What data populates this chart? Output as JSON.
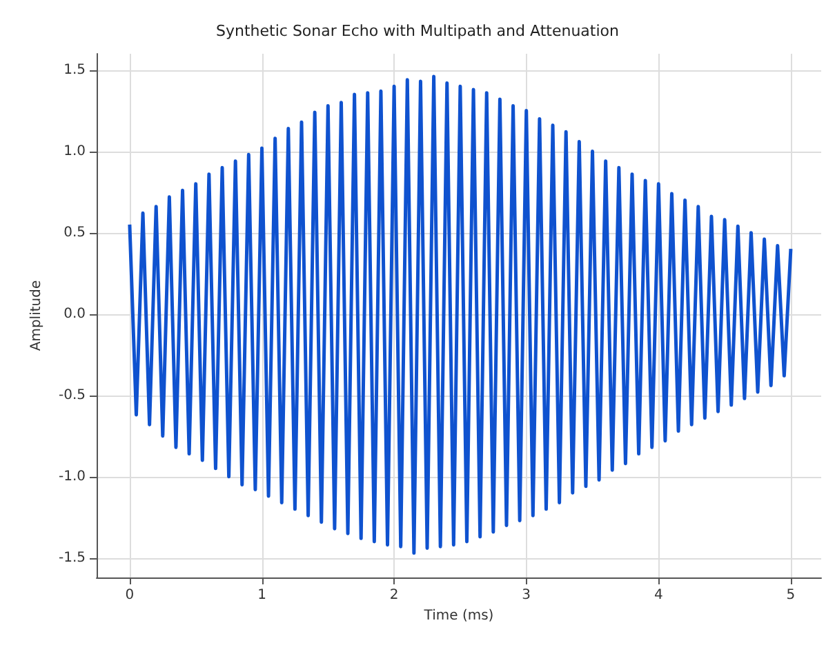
{
  "chart_data": {
    "type": "line",
    "title": "Synthetic Sonar Echo with Multipath and Attenuation",
    "xlabel": "Time (ms)",
    "ylabel": "Amplitude",
    "x": [
      0,
      0.05,
      0.1,
      0.15,
      0.2,
      0.25,
      0.3,
      0.35,
      0.4,
      0.45,
      0.5,
      0.55,
      0.6,
      0.65,
      0.7,
      0.75,
      0.8,
      0.85,
      0.9,
      0.95,
      1,
      1.05,
      1.1,
      1.15,
      1.2,
      1.25,
      1.3,
      1.35,
      1.4,
      1.45,
      1.5,
      1.55,
      1.6,
      1.65,
      1.7,
      1.75,
      1.8,
      1.85,
      1.9,
      1.95,
      2,
      2.05,
      2.1,
      2.15,
      2.2,
      2.25,
      2.3,
      2.35,
      2.4,
      2.45,
      2.5,
      2.55,
      2.6,
      2.65,
      2.7,
      2.75,
      2.8,
      2.85,
      2.9,
      2.95,
      3,
      3.05,
      3.1,
      3.15,
      3.2,
      3.25,
      3.3,
      3.35,
      3.4,
      3.45,
      3.5,
      3.55,
      3.6,
      3.65,
      3.7,
      3.75,
      3.8,
      3.85,
      3.9,
      3.95,
      4,
      4.05,
      4.1,
      4.15,
      4.2,
      4.25,
      4.3,
      4.35,
      4.4,
      4.45,
      4.5,
      4.55,
      4.6,
      4.65,
      4.7,
      4.75,
      4.8,
      4.85,
      4.9,
      4.95,
      5
    ],
    "series": [
      {
        "color": "#0f52cf",
        "values": [
          0.55,
          -0.62,
          0.62,
          -0.68,
          0.66,
          -0.75,
          0.72,
          -0.82,
          0.76,
          -0.86,
          0.8,
          -0.9,
          0.86,
          -0.95,
          0.9,
          -1.0,
          0.94,
          -1.05,
          0.98,
          -1.08,
          1.02,
          -1.12,
          1.08,
          -1.16,
          1.14,
          -1.2,
          1.18,
          -1.24,
          1.24,
          -1.28,
          1.28,
          -1.32,
          1.3,
          -1.35,
          1.35,
          -1.38,
          1.36,
          -1.4,
          1.37,
          -1.42,
          1.4,
          -1.43,
          1.44,
          -1.47,
          1.43,
          -1.44,
          1.46,
          -1.43,
          1.42,
          -1.42,
          1.4,
          -1.4,
          1.38,
          -1.37,
          1.36,
          -1.34,
          1.32,
          -1.3,
          1.28,
          -1.27,
          1.25,
          -1.24,
          1.2,
          -1.2,
          1.16,
          -1.16,
          1.12,
          -1.1,
          1.06,
          -1.06,
          1.0,
          -1.02,
          0.94,
          -0.96,
          0.9,
          -0.92,
          0.86,
          -0.86,
          0.82,
          -0.82,
          0.8,
          -0.78,
          0.74,
          -0.72,
          0.7,
          -0.68,
          0.66,
          -0.64,
          0.6,
          -0.6,
          0.58,
          -0.56,
          0.54,
          -0.52,
          0.5,
          -0.48,
          0.46,
          -0.44,
          0.42,
          -0.38,
          0.4
        ]
      }
    ],
    "xlim": [
      -0.25,
      5.23
    ],
    "ylim": [
      -1.62,
      1.6
    ],
    "xticks": [
      0,
      1,
      2,
      3,
      4,
      5
    ],
    "yticks": [
      -1.5,
      {
        "value": -1,
        "label": "-1.0"
      },
      -0.5,
      {
        "value": 0,
        "label": "0.0"
      },
      0.5,
      {
        "value": 1,
        "label": "1.0"
      },
      1.5
    ],
    "grid": true,
    "marker": "none",
    "line_style": "solid"
  }
}
